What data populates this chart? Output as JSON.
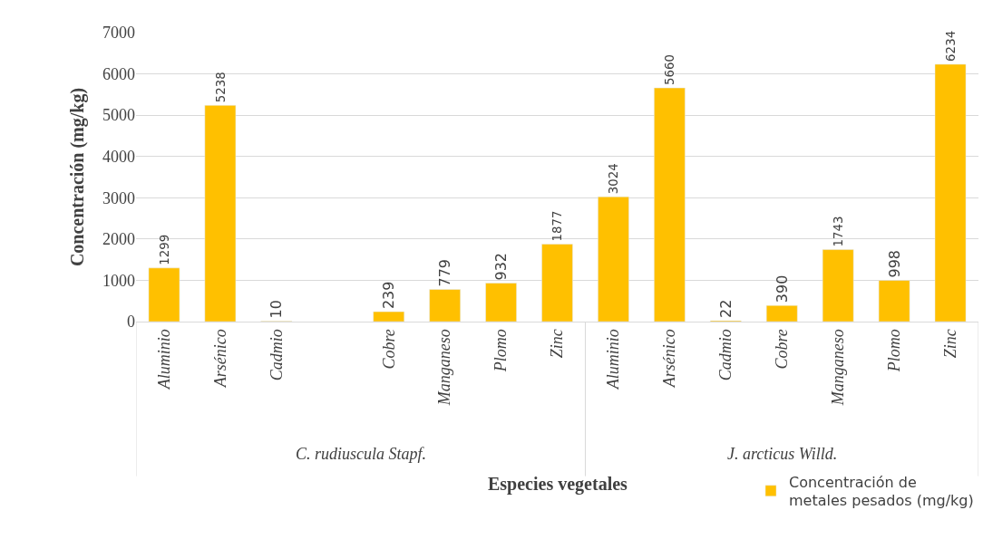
{
  "chart_data": {
    "type": "bar",
    "xlabel": "Especies vegetales",
    "ylabel": "Concentración (mg/kg)",
    "categories": [
      "Aluminio",
      "Arsénico",
      "Cadmio",
      null,
      "Cobre",
      "Manganeso",
      "Plomo",
      "Zinc",
      "Aluminio",
      "Arsénico",
      "Cadmio",
      "Cobre",
      "Manganeso",
      "Plomo",
      "Zinc"
    ],
    "series": [
      {
        "name": "Concentración de metales pesados (mg/kg)",
        "color": "#ffc000",
        "values": [
          1299,
          5238,
          10,
          null,
          239,
          779,
          932,
          1877,
          3024,
          5660,
          22,
          390,
          1743,
          998,
          6234
        ]
      }
    ],
    "ylim": [
      0,
      7000
    ],
    "yticks": [
      0,
      1000,
      2000,
      3000,
      4000,
      5000,
      6000,
      7000
    ],
    "grid": "y",
    "legend": "bottom right",
    "data_labels": true,
    "annotations": [
      "C. rudiuscula Stapf.",
      "J. arcticus Willd."
    ]
  }
}
